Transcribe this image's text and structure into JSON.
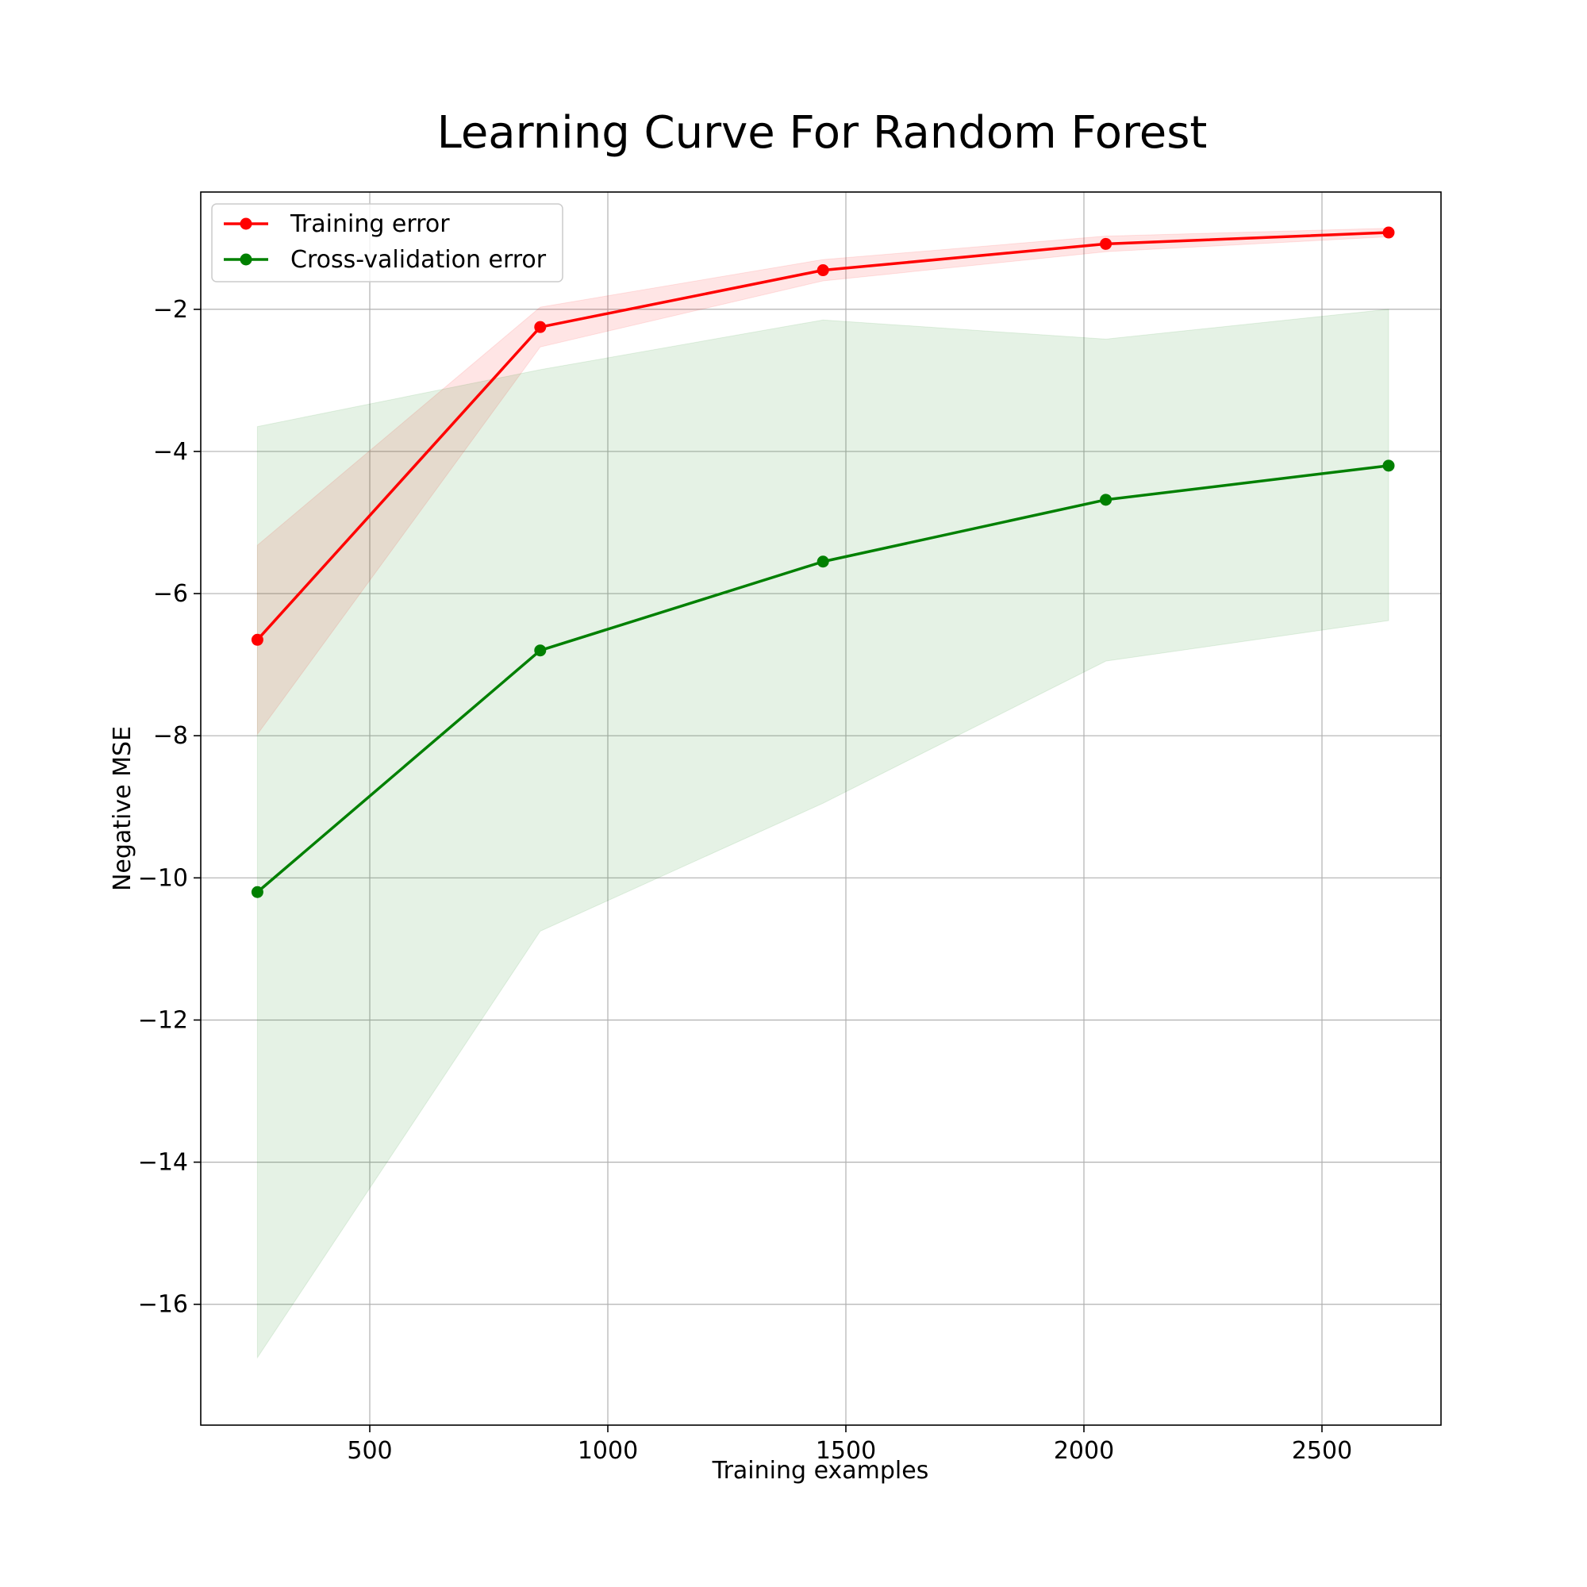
{
  "chart_data": {
    "type": "line",
    "title": "Learning Curve For Random Forest",
    "xlabel": "Training examples",
    "ylabel": "Negative MSE",
    "xlim": [
      145,
      2750
    ],
    "ylim": [
      -17.7,
      -0.35
    ],
    "x_ticks": [
      500,
      1000,
      1500,
      2000,
      2500
    ],
    "x_tick_labels": [
      "500",
      "1000",
      "1500",
      "2000",
      "2500"
    ],
    "y_ticks": [
      -2,
      -4,
      -6,
      -8,
      -10,
      -12,
      -14,
      -16
    ],
    "y_tick_labels": [
      "−2",
      "−4",
      "−6",
      "−8",
      "−10",
      "−12",
      "−14",
      "−16"
    ],
    "grid": true,
    "legend_position": "top-left",
    "x": [
      264,
      858,
      1452,
      2046,
      2640
    ],
    "series": [
      {
        "name": "Training error",
        "color": "#ff0000",
        "fill_color": "#ff0000",
        "values": [
          -6.65,
          -2.25,
          -1.45,
          -1.08,
          -0.92
        ],
        "upper": [
          -5.32,
          -1.97,
          -1.3,
          -0.97,
          -0.86
        ],
        "lower": [
          -7.98,
          -2.53,
          -1.6,
          -1.19,
          -0.98
        ]
      },
      {
        "name": "Cross-validation error",
        "color": "#008000",
        "fill_color": "#008000",
        "values": [
          -10.2,
          -6.8,
          -5.55,
          -4.68,
          -4.2
        ],
        "upper": [
          -3.65,
          -2.85,
          -2.15,
          -2.42,
          -2.0
        ],
        "lower": [
          -16.75,
          -10.75,
          -8.95,
          -6.95,
          -6.38
        ]
      }
    ]
  }
}
